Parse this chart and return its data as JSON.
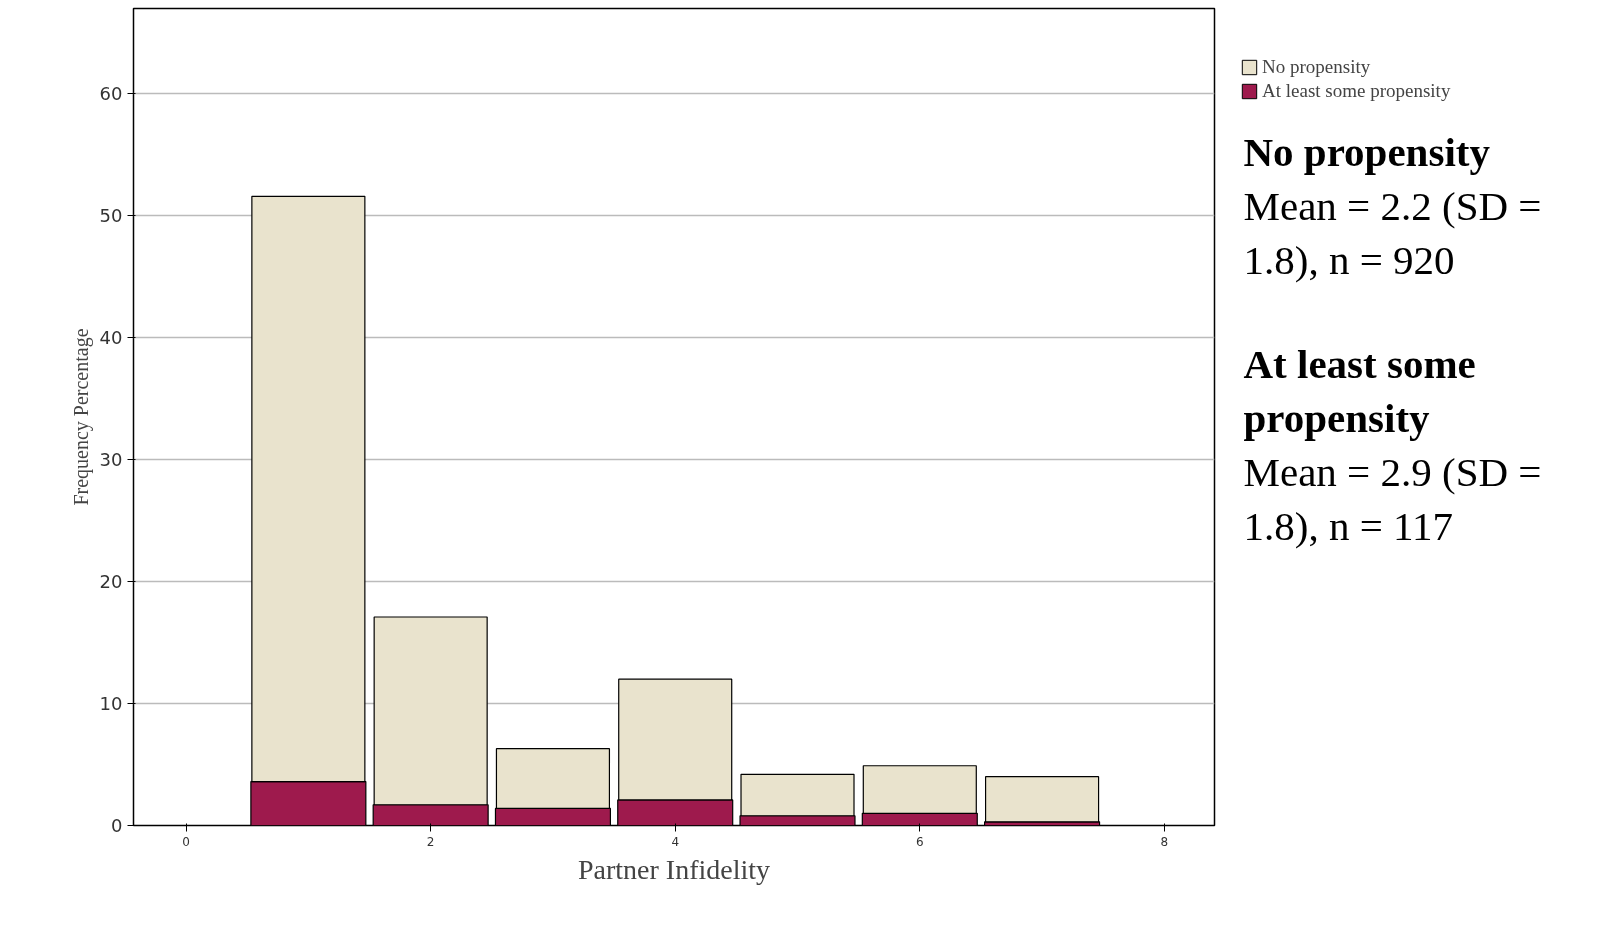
{
  "chart_data": {
    "type": "bar",
    "xlabel": "Partner Infidelity",
    "ylabel": "Frequency Percentage",
    "x": [
      1,
      2,
      3,
      4,
      5,
      6,
      7
    ],
    "stacked": true,
    "series": [
      {
        "name": "At least some propensity",
        "color": "#9e1a4d",
        "values": [
          3.6,
          1.7,
          1.4,
          2.1,
          0.8,
          1.0,
          0.3
        ]
      },
      {
        "name": "No propensity",
        "color": "#e9e3cd",
        "values": [
          48.0,
          15.4,
          4.9,
          9.9,
          3.4,
          3.9,
          3.7
        ]
      }
    ],
    "xlim": [
      -0.43,
      8.41
    ],
    "ylim": [
      0,
      67
    ],
    "xticks": [
      0,
      2,
      4,
      6,
      8
    ],
    "yticks": [
      0,
      10,
      20,
      30,
      40,
      50,
      60
    ],
    "grid": "y",
    "legend": "top right",
    "annotations": [
      "No propensity",
      "Mean = 2.2 (SD = 1.8), n = 920",
      "At least some propensity",
      "Mean = 2.9 (SD = 1.8), n = 117"
    ]
  }
}
